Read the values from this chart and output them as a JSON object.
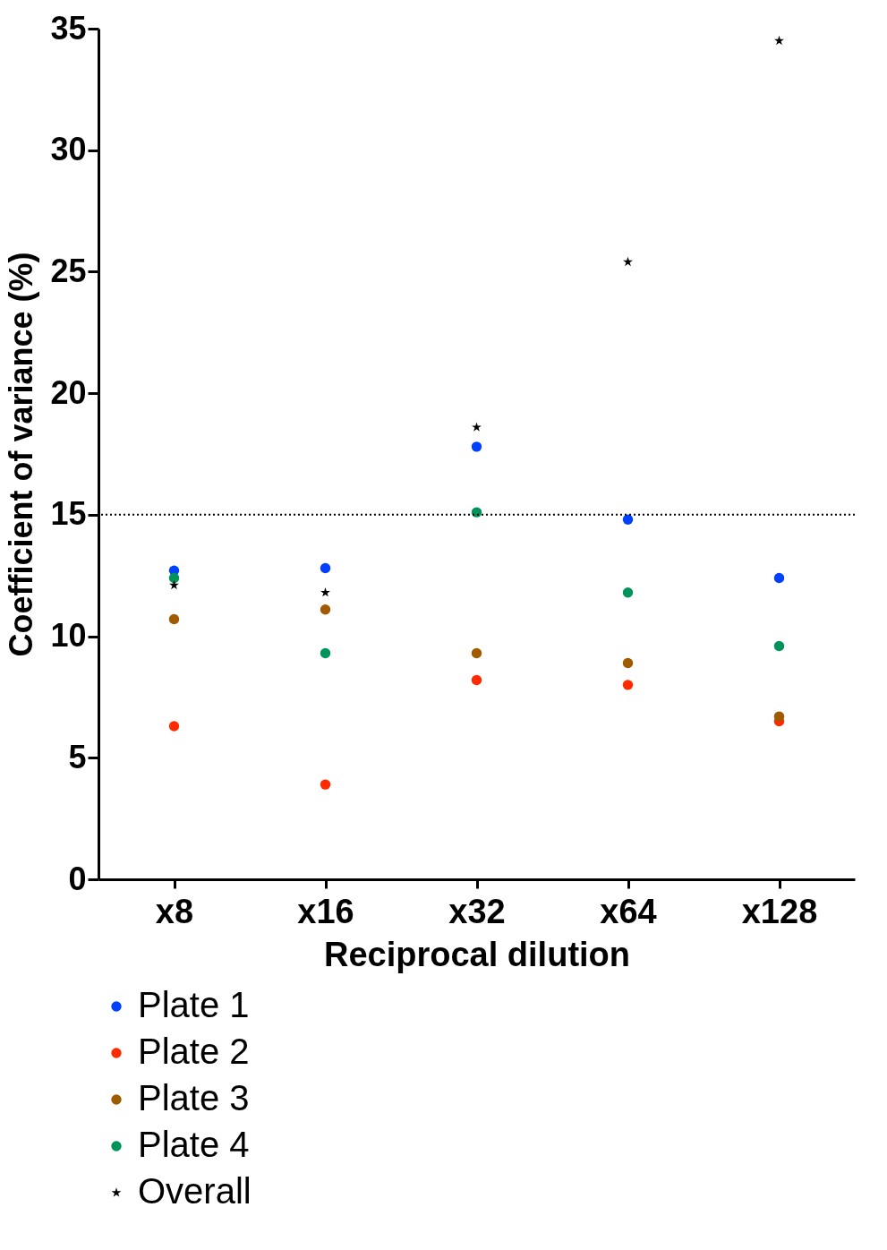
{
  "chart_data": {
    "type": "scatter",
    "xlabel": "Reciprocal dilution",
    "ylabel": "Coefficient of variance (%)",
    "categories": [
      "x8",
      "x16",
      "x32",
      "x64",
      "x128"
    ],
    "series": [
      {
        "name": "Plate 1",
        "color": "#0040ff",
        "values": [
          12.7,
          12.8,
          17.8,
          14.8,
          12.4
        ]
      },
      {
        "name": "Plate 2",
        "color": "#ff2a00",
        "values": [
          6.3,
          3.9,
          8.2,
          8.0,
          6.5
        ]
      },
      {
        "name": "Plate 3",
        "color": "#a05a00",
        "values": [
          10.7,
          11.1,
          9.3,
          8.9,
          6.7
        ]
      },
      {
        "name": "Plate 4",
        "color": "#00935a",
        "values": [
          12.4,
          9.3,
          15.1,
          11.8,
          9.6
        ]
      },
      {
        "name": "Overall",
        "color": "#000000",
        "marker": "star",
        "values": [
          12.1,
          11.8,
          18.6,
          25.4,
          34.5
        ]
      }
    ],
    "marker": "circle",
    "ylim": [
      0,
      35
    ],
    "yticks": [
      0,
      5,
      10,
      15,
      20,
      25,
      30,
      35
    ],
    "grid": false,
    "legend": "bottom left",
    "ref_lines": [
      {
        "axis": "y",
        "value": 15,
        "line_style": "dotted",
        "color": "#000000"
      }
    ]
  }
}
